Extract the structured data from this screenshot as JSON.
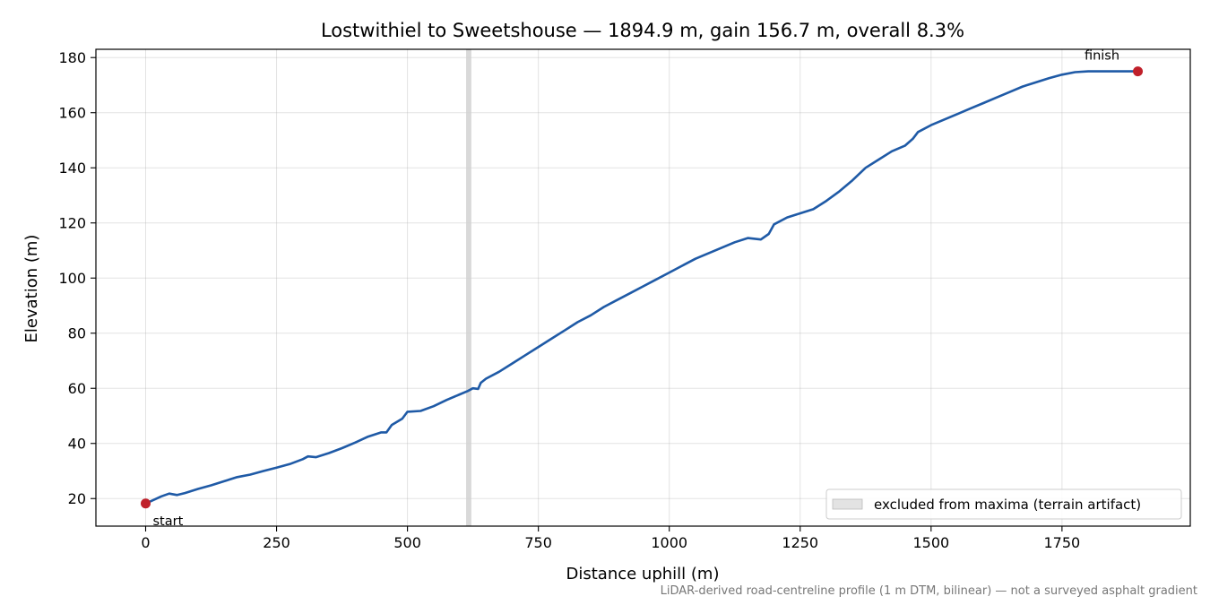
{
  "chart_data": {
    "type": "line",
    "title": "Lostwithiel to Sweetshouse — 1894.9 m, gain 156.7 m, overall 8.3%",
    "xlabel": "Distance uphill (m)",
    "ylabel": "Elevation (m)",
    "xlim": [
      -95,
      1995
    ],
    "ylim": [
      10,
      183
    ],
    "x_ticks": [
      0,
      250,
      500,
      750,
      1000,
      1250,
      1500,
      1750
    ],
    "x_tick_labels": [
      "0",
      "250",
      "500",
      "750",
      "1000",
      "1250",
      "1500",
      "1750"
    ],
    "y_ticks": [
      20,
      40,
      60,
      80,
      100,
      120,
      140,
      160,
      180
    ],
    "y_tick_labels": [
      "20",
      "40",
      "60",
      "80",
      "100",
      "120",
      "140",
      "160",
      "180"
    ],
    "grid": true,
    "legend_placement": "lower-right",
    "colors": {
      "line": "#1f5aa6",
      "marker": "#c0202a",
      "band": "#d0d0d0"
    },
    "series": [
      {
        "x": [
          0,
          15,
          30,
          45,
          60,
          75,
          100,
          125,
          150,
          175,
          200,
          225,
          250,
          275,
          300,
          310,
          325,
          350,
          375,
          400,
          425,
          450,
          460,
          470,
          490,
          500,
          525,
          550,
          575,
          600,
          615,
          625,
          635,
          640,
          650,
          675,
          700,
          725,
          750,
          775,
          800,
          825,
          850,
          875,
          900,
          925,
          950,
          975,
          1000,
          1025,
          1050,
          1075,
          1100,
          1125,
          1150,
          1175,
          1190,
          1200,
          1225,
          1250,
          1275,
          1300,
          1325,
          1350,
          1375,
          1400,
          1425,
          1450,
          1465,
          1475,
          1500,
          1525,
          1550,
          1575,
          1600,
          1625,
          1650,
          1675,
          1700,
          1725,
          1750,
          1775,
          1800,
          1825,
          1850,
          1875,
          1894.9
        ],
        "y": [
          18.2,
          19.5,
          20.8,
          21.8,
          21.3,
          22.0,
          23.5,
          24.8,
          26.3,
          27.8,
          28.7,
          30.0,
          31.2,
          32.5,
          34.3,
          35.3,
          35.0,
          36.5,
          38.3,
          40.3,
          42.5,
          44.0,
          44.0,
          46.7,
          49.0,
          51.5,
          51.8,
          53.5,
          55.8,
          57.8,
          59.0,
          60.0,
          59.8,
          62.0,
          63.5,
          66.0,
          69.0,
          72.0,
          75.0,
          78.0,
          81.0,
          84.0,
          86.5,
          89.5,
          92.0,
          94.5,
          97.0,
          99.5,
          102.0,
          104.5,
          107.0,
          109.0,
          111.0,
          113.0,
          114.5,
          114.0,
          116.0,
          119.5,
          122.0,
          123.5,
          125.0,
          128.0,
          131.5,
          135.5,
          140.0,
          143.0,
          146.0,
          148.0,
          150.5,
          153.0,
          155.5,
          157.5,
          159.5,
          161.5,
          163.5,
          165.5,
          167.5,
          169.5,
          171.0,
          172.5,
          173.8,
          174.7,
          175.0,
          175.0,
          175.0,
          175.0,
          175.0
        ]
      }
    ],
    "excluded_band": {
      "x_start": 612,
      "x_end": 622,
      "label": "excluded from maxima (terrain artifact)"
    },
    "markers": [
      {
        "x": 0,
        "y": 18.2,
        "label": "start"
      },
      {
        "x": 1894.9,
        "y": 175.0,
        "label": "finish"
      }
    ],
    "footnote": "LiDAR-derived road-centreline profile (1 m DTM, bilinear) — not a surveyed asphalt gradient"
  }
}
